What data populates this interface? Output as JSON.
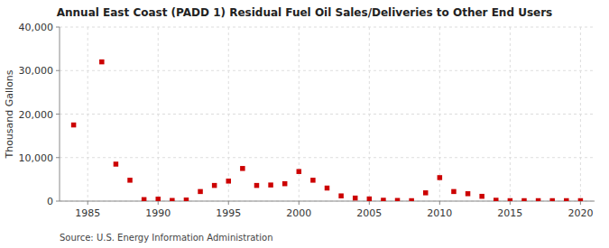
{
  "chart_data": {
    "type": "scatter",
    "title": "Annual East Coast (PADD 1) Residual Fuel Oil Sales/Deliveries to Other End Users",
    "ylabel": "Thousand Gallons",
    "source": "Source: U.S. Energy Information Administration",
    "color": "#cc0000",
    "marker": "square",
    "grid": true,
    "xlim": [
      1983,
      2021
    ],
    "ylim": [
      0,
      40000
    ],
    "xticks": [
      1985,
      1990,
      1995,
      2000,
      2005,
      2010,
      2015,
      2020
    ],
    "yticks": [
      0,
      {
        "value": 10000,
        "label": "10,000"
      },
      {
        "value": 20000,
        "label": "20,000"
      },
      {
        "value": 30000,
        "label": "30,000"
      },
      {
        "value": 40000,
        "label": "40,000"
      }
    ],
    "x": [
      1984,
      1986,
      1987,
      1988,
      1989,
      1990,
      1991,
      1992,
      1993,
      1994,
      1995,
      1996,
      1997,
      1998,
      1999,
      2000,
      2001,
      2002,
      2003,
      2004,
      2005,
      2006,
      2007,
      2008,
      2009,
      2010,
      2011,
      2012,
      2013,
      2014,
      2015,
      2016,
      2017,
      2018,
      2019,
      2020
    ],
    "values": [
      17500,
      32000,
      8500,
      4800,
      350,
      450,
      150,
      250,
      2200,
      3600,
      4600,
      7500,
      3600,
      3700,
      4000,
      6800,
      4800,
      3000,
      1200,
      700,
      500,
      200,
      150,
      100,
      1900,
      5400,
      2200,
      1700,
      1100,
      200,
      100,
      100,
      100,
      100,
      100,
      100
    ]
  }
}
